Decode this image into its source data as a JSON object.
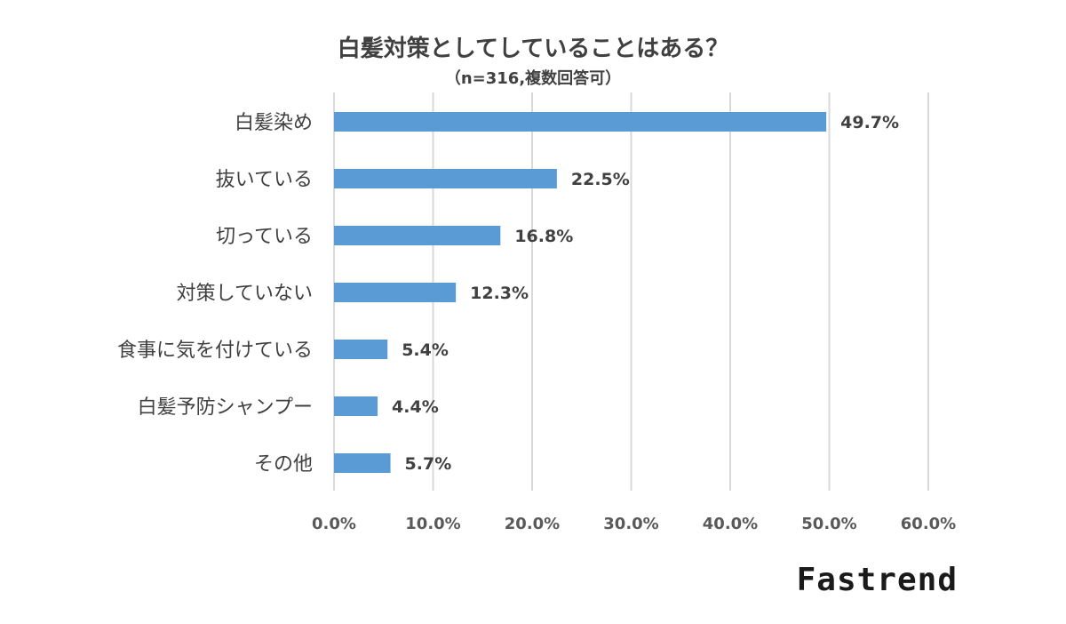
{
  "chart_data": {
    "type": "bar",
    "orientation": "horizontal",
    "title": "白髪対策としてしていることはある？",
    "subtitle": "（n=316,複数回答可）",
    "categories": [
      "白髪染め",
      "抜いている",
      "切っている",
      "対策していない",
      "食事に気を付けている",
      "白髪予防シャンプー",
      "その他"
    ],
    "values": [
      49.7,
      22.5,
      16.8,
      12.3,
      5.4,
      4.4,
      5.7
    ],
    "value_labels": [
      "49.7%",
      "22.5%",
      "16.8%",
      "12.3%",
      "5.4%",
      "4.4%",
      "5.7%"
    ],
    "xlim": [
      0,
      60
    ],
    "xticks": [
      0,
      10,
      20,
      30,
      40,
      50,
      60
    ],
    "xtick_labels": [
      "0.0%",
      "10.0%",
      "20.0%",
      "30.0%",
      "40.0%",
      "50.0%",
      "60.0%"
    ],
    "grid": true,
    "bar_color": "#5B9BD5",
    "grid_color": "#D9D9D9"
  },
  "brand": {
    "logo_text": "Fastrend"
  }
}
